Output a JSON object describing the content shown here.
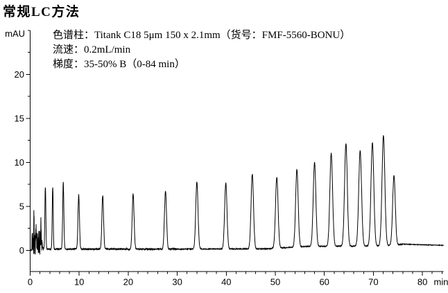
{
  "title": "常规LC方法",
  "annotation": {
    "column": "色谱柱：Titank C18 5μm 150 x 2.1mm（货号：FMF-5560-BONU）",
    "flow_rate": "流速：0.2mL/min",
    "gradient": "梯度：35-50% B（0-84 min）"
  },
  "chart_data": {
    "type": "line",
    "title": "常规LC方法",
    "ylabel": "mAU",
    "xlabel": "min",
    "xlim": [
      0,
      84.3
    ],
    "ylim": [
      -2.4,
      25
    ],
    "grid": false,
    "legend": false,
    "trace_color": "#000000",
    "axis_color": "#000000",
    "x_major_ticks": [
      0,
      10,
      20,
      30,
      40,
      50,
      60,
      70,
      80
    ],
    "x_tick_labels": [
      "0",
      "10",
      "20",
      "30",
      "40",
      "50",
      "60",
      "70",
      "80"
    ],
    "x_minor_tick_step": 2,
    "y_major_ticks": [
      0,
      5,
      10,
      15,
      20
    ],
    "y_tick_labels": [
      "0",
      "5",
      "10",
      "15",
      "20"
    ],
    "y_minor_tick_step": 2.5,
    "baseline_mau": {
      "control_points": [
        [
          0,
          0.0
        ],
        [
          0.3,
          0.02
        ],
        [
          3,
          0.15
        ],
        [
          30,
          0.15
        ],
        [
          48,
          0.18
        ],
        [
          56,
          0.45
        ],
        [
          70,
          0.5
        ],
        [
          74.5,
          0.6
        ],
        [
          76,
          0.72
        ],
        [
          79,
          0.65
        ],
        [
          84.3,
          0.58
        ]
      ]
    },
    "injection_disturbance": {
      "t_range": [
        0.35,
        2.65
      ],
      "max_mau": 4.2,
      "min_mau": -0.6,
      "spikes": [
        {
          "t": 0.78,
          "amp_mau": 3.9,
          "sigma": 0.035
        },
        {
          "t": 1.22,
          "amp_mau": 2.4,
          "sigma": 0.05
        },
        {
          "t": 2.2,
          "amp_mau": 2.1,
          "sigma": 0.05
        }
      ]
    },
    "peaks": [
      {
        "t": 3.1,
        "apex_mau": 7.2,
        "sigma": 0.1
      },
      {
        "t": 4.6,
        "apex_mau": 7.2,
        "sigma": 0.1
      },
      {
        "t": 6.75,
        "apex_mau": 7.7,
        "sigma": 0.12
      },
      {
        "t": 9.9,
        "apex_mau": 6.3,
        "sigma": 0.15
      },
      {
        "t": 14.8,
        "apex_mau": 6.25,
        "sigma": 0.17
      },
      {
        "t": 21.0,
        "apex_mau": 6.4,
        "sigma": 0.19
      },
      {
        "t": 27.6,
        "apex_mau": 6.75,
        "sigma": 0.21
      },
      {
        "t": 34.0,
        "apex_mau": 7.8,
        "sigma": 0.23
      },
      {
        "t": 39.9,
        "apex_mau": 7.65,
        "sigma": 0.24
      },
      {
        "t": 45.3,
        "apex_mau": 8.65,
        "sigma": 0.25
      },
      {
        "t": 50.3,
        "apex_mau": 8.3,
        "sigma": 0.26
      },
      {
        "t": 54.4,
        "apex_mau": 9.2,
        "sigma": 0.26
      },
      {
        "t": 58.0,
        "apex_mau": 10.0,
        "sigma": 0.27
      },
      {
        "t": 61.4,
        "apex_mau": 11.0,
        "sigma": 0.28
      },
      {
        "t": 64.4,
        "apex_mau": 12.15,
        "sigma": 0.28
      },
      {
        "t": 67.3,
        "apex_mau": 11.3,
        "sigma": 0.29
      },
      {
        "t": 69.8,
        "apex_mau": 12.2,
        "sigma": 0.29
      },
      {
        "t": 72.05,
        "apex_mau": 13.05,
        "sigma": 0.29
      },
      {
        "t": 74.2,
        "apex_mau": 8.5,
        "sigma": 0.27
      }
    ]
  }
}
